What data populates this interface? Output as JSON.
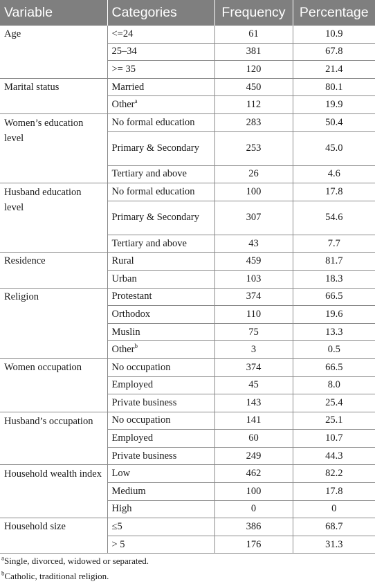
{
  "headers": [
    "Variable",
    "Categories",
    "Frequency",
    "Percentage"
  ],
  "groups": [
    {
      "variable": "Age",
      "rows": [
        {
          "category": "<=24",
          "sup": "",
          "frequency": "61",
          "percentage": "10.9"
        },
        {
          "category": "25–34",
          "sup": "",
          "frequency": "381",
          "percentage": "67.8"
        },
        {
          "category": ">= 35",
          "sup": "",
          "frequency": "120",
          "percentage": "21.4"
        }
      ]
    },
    {
      "variable": "Marital status",
      "rows": [
        {
          "category": "Married",
          "sup": "",
          "frequency": "450",
          "percentage": "80.1"
        },
        {
          "category": "Other",
          "sup": "a",
          "frequency": "112",
          "percentage": "19.9"
        }
      ]
    },
    {
      "variable": "Women’s education level",
      "rows": [
        {
          "category": "No formal education",
          "sup": "",
          "frequency": "283",
          "percentage": "50.4"
        },
        {
          "category": "Primary & Secondary",
          "sup": "",
          "frequency": "253",
          "percentage": "45.0",
          "tall": true
        },
        {
          "category": "Tertiary and above",
          "sup": "",
          "frequency": "26",
          "percentage": "4.6"
        }
      ]
    },
    {
      "variable": "Husband education level",
      "rows": [
        {
          "category": "No formal education",
          "sup": "",
          "frequency": "100",
          "percentage": "17.8"
        },
        {
          "category": "Primary & Secondary",
          "sup": "",
          "frequency": "307",
          "percentage": "54.6",
          "tall": true
        },
        {
          "category": "Tertiary and above",
          "sup": "",
          "frequency": "43",
          "percentage": "7.7"
        }
      ]
    },
    {
      "variable": "Residence",
      "rows": [
        {
          "category": "Rural",
          "sup": "",
          "frequency": "459",
          "percentage": "81.7"
        },
        {
          "category": "Urban",
          "sup": "",
          "frequency": "103",
          "percentage": "18.3"
        }
      ]
    },
    {
      "variable": "Religion",
      "rows": [
        {
          "category": "Protestant",
          "sup": "",
          "frequency": "374",
          "percentage": "66.5"
        },
        {
          "category": "Orthodox",
          "sup": "",
          "frequency": "110",
          "percentage": "19.6"
        },
        {
          "category": "Muslin",
          "sup": "",
          "frequency": "75",
          "percentage": "13.3"
        },
        {
          "category": "Other",
          "sup": "b",
          "frequency": "3",
          "percentage": "0.5"
        }
      ]
    },
    {
      "variable": "Women occupation",
      "rows": [
        {
          "category": "No occupation",
          "sup": "",
          "frequency": "374",
          "percentage": "66.5"
        },
        {
          "category": "Employed",
          "sup": "",
          "frequency": "45",
          "percentage": "8.0"
        },
        {
          "category": "Private business",
          "sup": "",
          "frequency": "143",
          "percentage": "25.4"
        }
      ]
    },
    {
      "variable": "Husband’s occupation",
      "rows": [
        {
          "category": "No occupation",
          "sup": "",
          "frequency": "141",
          "percentage": "25.1"
        },
        {
          "category": "Employed",
          "sup": "",
          "frequency": "60",
          "percentage": "10.7"
        },
        {
          "category": "Private business",
          "sup": "",
          "frequency": "249",
          "percentage": "44.3"
        }
      ]
    },
    {
      "variable": "Household wealth index",
      "rows": [
        {
          "category": "Low",
          "sup": "",
          "frequency": "462",
          "percentage": "82.2"
        },
        {
          "category": "Medium",
          "sup": "",
          "frequency": "100",
          "percentage": "17.8"
        },
        {
          "category": "High",
          "sup": "",
          "frequency": "0",
          "percentage": "0"
        }
      ]
    },
    {
      "variable": "Household size",
      "rows": [
        {
          "category": "≤5",
          "sup": "",
          "frequency": "386",
          "percentage": "68.7"
        },
        {
          "category": "> 5",
          "sup": "",
          "frequency": "176",
          "percentage": "31.3"
        }
      ]
    }
  ],
  "footnotes": [
    {
      "mark": "a",
      "text": "Single, divorced, widowed or separated."
    },
    {
      "mark": "b",
      "text": "Catholic, traditional religion."
    }
  ]
}
